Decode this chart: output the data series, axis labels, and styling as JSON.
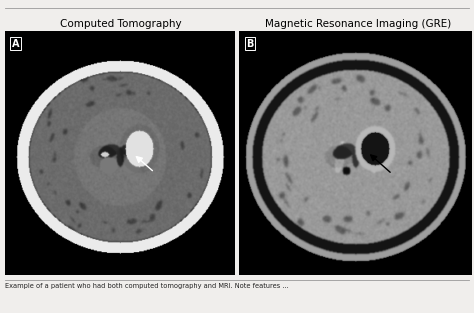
{
  "title_left": "Computed Tomography",
  "title_right": "Magnetic Resonance Imaging (GRE)",
  "label_a": "A",
  "label_b": "B",
  "title_fontsize": 7.5,
  "label_fontsize": 7,
  "caption_text": "Example of a patient who had both computed tomography and MRI. Note features ...",
  "caption_fontsize": 4.8,
  "outer_bg": "#f0eeec"
}
